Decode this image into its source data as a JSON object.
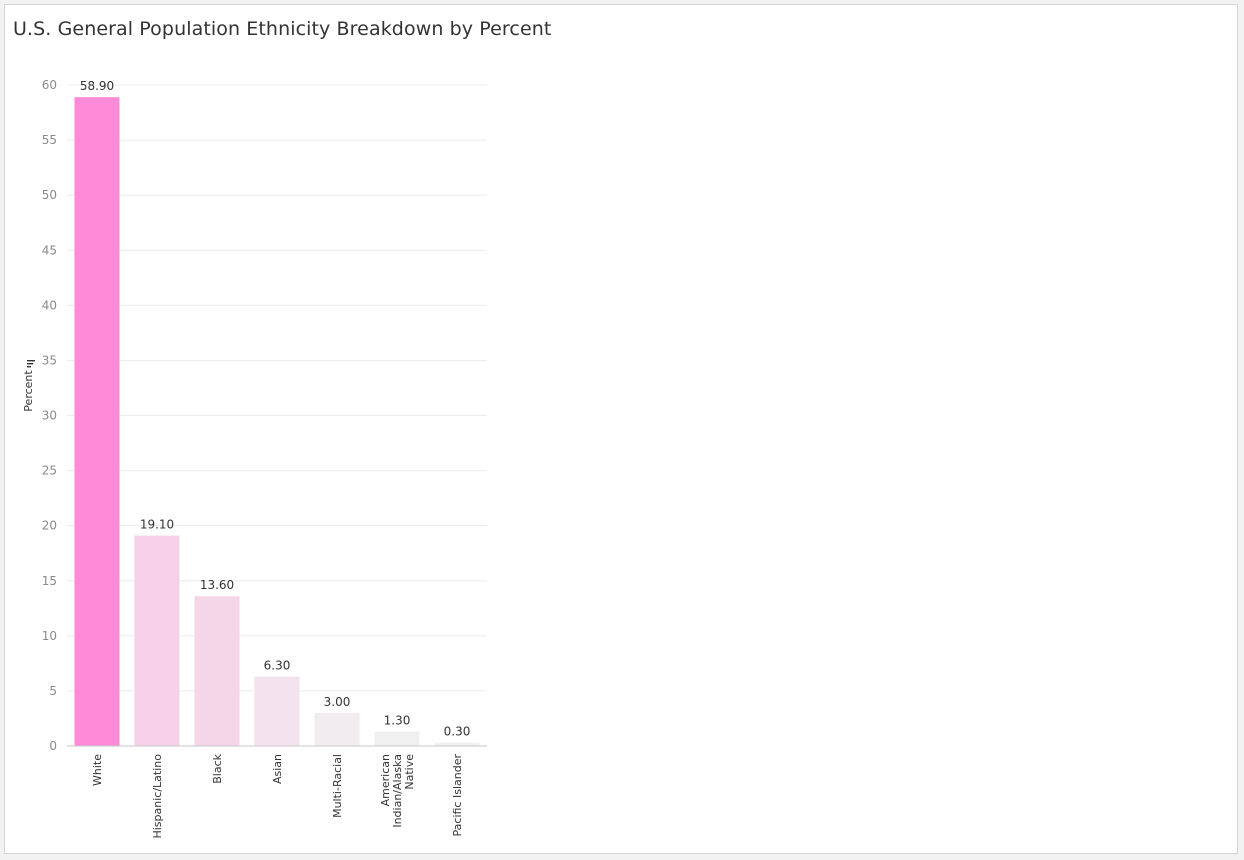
{
  "chart_data": {
    "type": "bar",
    "title": "U.S. General Population Ethnicity Breakdown by Percent",
    "ylabel": "Percent",
    "xlabel": "",
    "ylim": [
      0,
      63
    ],
    "yticks": [
      0,
      5,
      10,
      15,
      20,
      25,
      30,
      35,
      40,
      45,
      50,
      55,
      60
    ],
    "grid": true,
    "categories": [
      [
        "White"
      ],
      [
        "Hispanic/Latino"
      ],
      [
        "Black"
      ],
      [
        "Asian"
      ],
      [
        "Multi-Racial"
      ],
      [
        "American",
        "Indian/Alaska",
        "Native"
      ],
      [
        "Pacific Islander"
      ]
    ],
    "values": [
      58.9,
      19.1,
      13.6,
      6.3,
      3.0,
      1.3,
      0.3
    ],
    "data_labels": [
      "58.90",
      "19.10",
      "13.60",
      "6.30",
      "3.00",
      "1.30",
      "0.30"
    ],
    "colors": [
      "#ff8ad8",
      "#f5d0e8",
      "#f5d5e8",
      "#f3e3ee",
      "#f0ecef",
      "#f0f0f0",
      "#f1f1f1"
    ]
  }
}
